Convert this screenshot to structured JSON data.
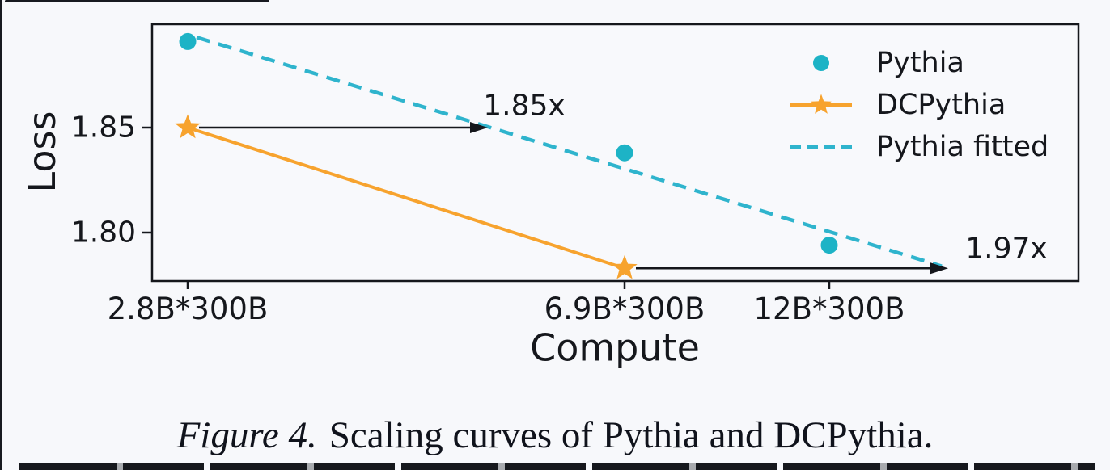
{
  "figure": {
    "caption_prefix": "Figure 4.",
    "caption_text": "Scaling curves of Pythia and DCPythia."
  },
  "chart_data": {
    "type": "scatter",
    "title": "",
    "xlabel": "Compute",
    "ylabel": "Loss",
    "categories": [
      "2.8B*300B",
      "6.9B*300B",
      "12B*300B"
    ],
    "ytick_labels": [
      "1.85",
      "1.80"
    ],
    "ytick_values": [
      1.85,
      1.8
    ],
    "ylim": [
      1.776,
      1.898
    ],
    "grid": false,
    "series": [
      {
        "name": "Pythia",
        "type": "scatter",
        "marker": "circle",
        "color": "#1db3c6",
        "categories": [
          "2.8B*300B",
          "6.9B*300B",
          "12B*300B"
        ],
        "values": [
          1.891,
          1.838,
          1.794
        ]
      },
      {
        "name": "DCPythia",
        "type": "line+marker",
        "marker": "star",
        "color": "#f7a32e",
        "categories": [
          "2.8B*300B",
          "6.9B*300B"
        ],
        "values": [
          1.85,
          1.783
        ]
      },
      {
        "name": "Pythia fitted",
        "type": "line",
        "style": "dashed",
        "color": "#2fb4cd",
        "endpoint_values": [
          1.893,
          1.784
        ]
      }
    ],
    "annotations": [
      {
        "label": "1.85x",
        "at_loss": 1.85,
        "from_category_index": 0
      },
      {
        "label": "1.97x",
        "at_loss": 1.783,
        "from_category_index": 1
      }
    ],
    "legend": {
      "position": "upper right",
      "frame": false
    }
  }
}
